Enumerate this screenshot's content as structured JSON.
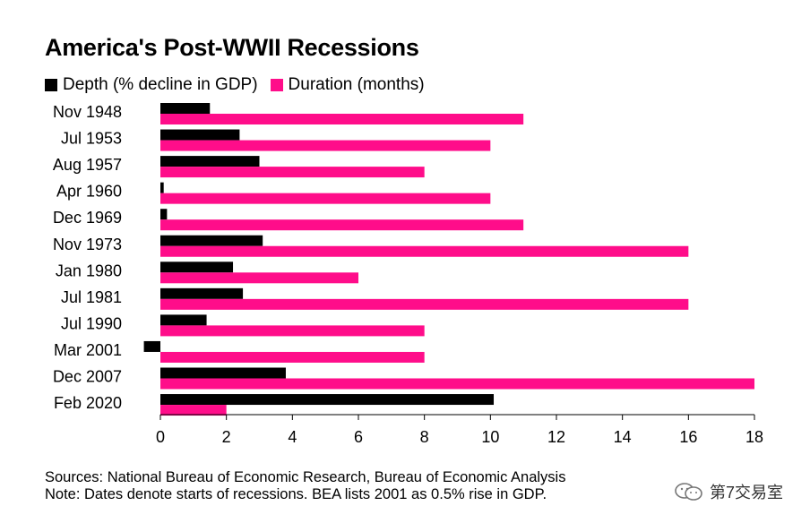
{
  "colors": {
    "depth": "#000000",
    "duration": "#ff0d8a",
    "axis": "#000000"
  },
  "watermark": {
    "text": "第7交易室",
    "icon": "wechat-icon"
  },
  "chart_data": {
    "type": "bar",
    "orientation": "horizontal",
    "title": "America's Post-WWII Recessions",
    "categories": [
      "Nov 1948",
      "Jul 1953",
      "Aug 1957",
      "Apr 1960",
      "Dec 1969",
      "Nov 1973",
      "Jan 1980",
      "Jul 1981",
      "Jul 1990",
      "Mar 2001",
      "Dec 2007",
      "Feb 2020"
    ],
    "series": [
      {
        "name": "Depth (% decline in GDP)",
        "values": [
          1.5,
          2.4,
          3.0,
          0.1,
          0.2,
          3.1,
          2.2,
          2.5,
          1.4,
          -0.5,
          3.8,
          10.1
        ]
      },
      {
        "name": "Duration (months)",
        "values": [
          11,
          10,
          8,
          10,
          11,
          16,
          6,
          16,
          8,
          8,
          18,
          2
        ]
      }
    ],
    "xlim": [
      0,
      18
    ],
    "xticks": [
      0,
      2,
      4,
      6,
      8,
      10,
      12,
      14,
      16,
      18
    ],
    "legend": "top-left",
    "grid": false,
    "sources": "Sources: National Bureau of Economic Research, Bureau of Economic Analysis",
    "note": "Note: Dates denote starts of recessions. BEA lists 2001 as 0.5% rise in GDP."
  }
}
